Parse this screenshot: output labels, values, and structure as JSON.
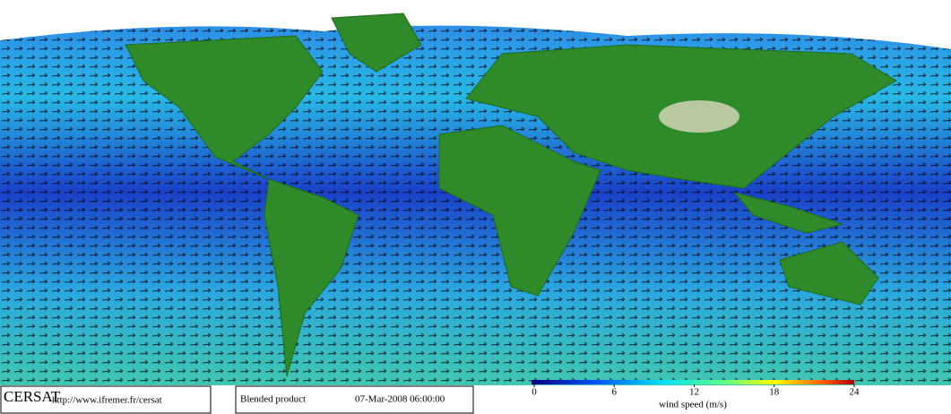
{
  "footer": {
    "logo": "CERSAT",
    "url": "http://www.ifremer.fr/cersat",
    "product": "Blended product",
    "date": "07-Mar-2008 06:00:00"
  },
  "colorbar": {
    "lim": [
      0,
      24
    ],
    "ticks": [
      0,
      6,
      12,
      18,
      24
    ],
    "label": "wind speed (m/s)"
  }
}
